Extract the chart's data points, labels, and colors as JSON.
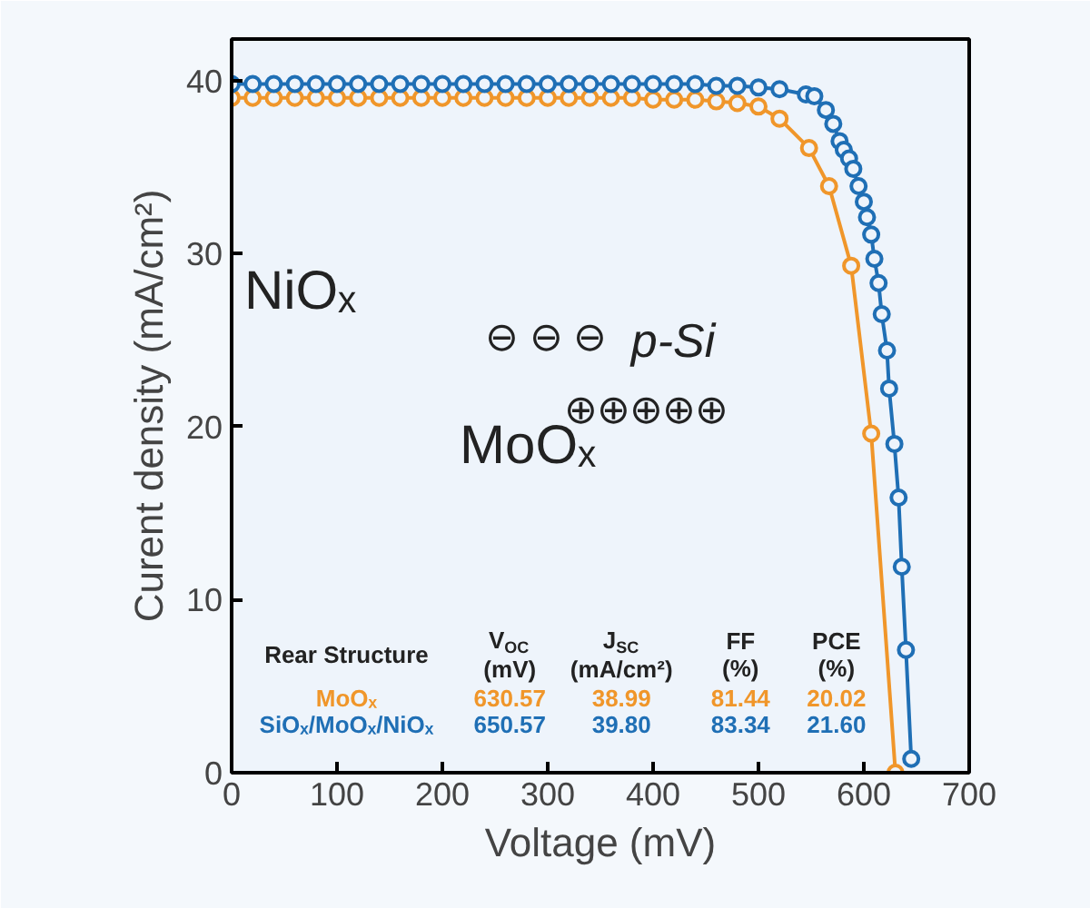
{
  "chart_data": {
    "type": "line",
    "xlabel": "Voltage (mV)",
    "ylabel": "Curent density (mA/cm²)",
    "xlim": [
      0,
      700
    ],
    "xticks": [
      0,
      100,
      200,
      300,
      400,
      500,
      600,
      700
    ],
    "ylim": [
      0,
      42.4
    ],
    "yticks": [
      0,
      10,
      20,
      30,
      40
    ],
    "marker": "circle",
    "grid": false,
    "series": [
      {
        "color": "#f0962a",
        "x": [
          0,
          20,
          40,
          60,
          80,
          100,
          120,
          140,
          160,
          180,
          200,
          220,
          240,
          260,
          280,
          300,
          320,
          340,
          360,
          380,
          400,
          420,
          440,
          460,
          480,
          500,
          520,
          548,
          567,
          588,
          607,
          630
        ],
        "values": [
          39.0,
          39.0,
          39.0,
          39.0,
          39.0,
          39.0,
          39.0,
          39.0,
          39.0,
          39.0,
          39.0,
          39.0,
          39.0,
          39.0,
          39.0,
          39.0,
          39.0,
          39.0,
          39.0,
          39.0,
          38.9,
          38.9,
          38.9,
          38.8,
          38.7,
          38.5,
          37.8,
          36.1,
          33.9,
          29.3,
          19.6,
          0
        ]
      },
      {
        "color": "#1f6fb5",
        "x": [
          0,
          20,
          40,
          60,
          80,
          100,
          120,
          140,
          160,
          180,
          200,
          220,
          240,
          260,
          280,
          300,
          320,
          340,
          360,
          380,
          400,
          420,
          440,
          460,
          480,
          500,
          520,
          545,
          553,
          564,
          571,
          577,
          581,
          586,
          590,
          595,
          600,
          603,
          607,
          610,
          614,
          617,
          622,
          624,
          629,
          633,
          636,
          640,
          645
        ],
        "values": [
          39.8,
          39.8,
          39.8,
          39.8,
          39.8,
          39.8,
          39.8,
          39.8,
          39.8,
          39.8,
          39.8,
          39.8,
          39.8,
          39.8,
          39.8,
          39.8,
          39.8,
          39.8,
          39.8,
          39.8,
          39.8,
          39.8,
          39.8,
          39.7,
          39.7,
          39.6,
          39.5,
          39.2,
          39.1,
          38.3,
          37.5,
          36.5,
          36.0,
          35.5,
          34.9,
          33.9,
          33.0,
          32.1,
          31.1,
          29.7,
          28.3,
          26.5,
          24.4,
          22.2,
          19.0,
          15.9,
          11.9,
          7.1,
          0.8
        ]
      }
    ],
    "annotations": [
      "NiOₓ",
      "MoOₓ",
      "p-Si",
      "⊖ ⊖ ⊖",
      "⊕⊕⊕⊕⊕",
      "Rear Structure",
      "V$_{OC}$\n(mV)",
      "J$_{SC}$\n(mA/cm²)",
      "FF\n(%)",
      "PCE\n(%)",
      "MoOₓ",
      "630.57",
      "38.99",
      "81.44",
      "20.02",
      "SiOₓ/MoOₓ/NiOₓ",
      "650.57",
      "39.80",
      "83.34",
      "21.60"
    ]
  }
}
